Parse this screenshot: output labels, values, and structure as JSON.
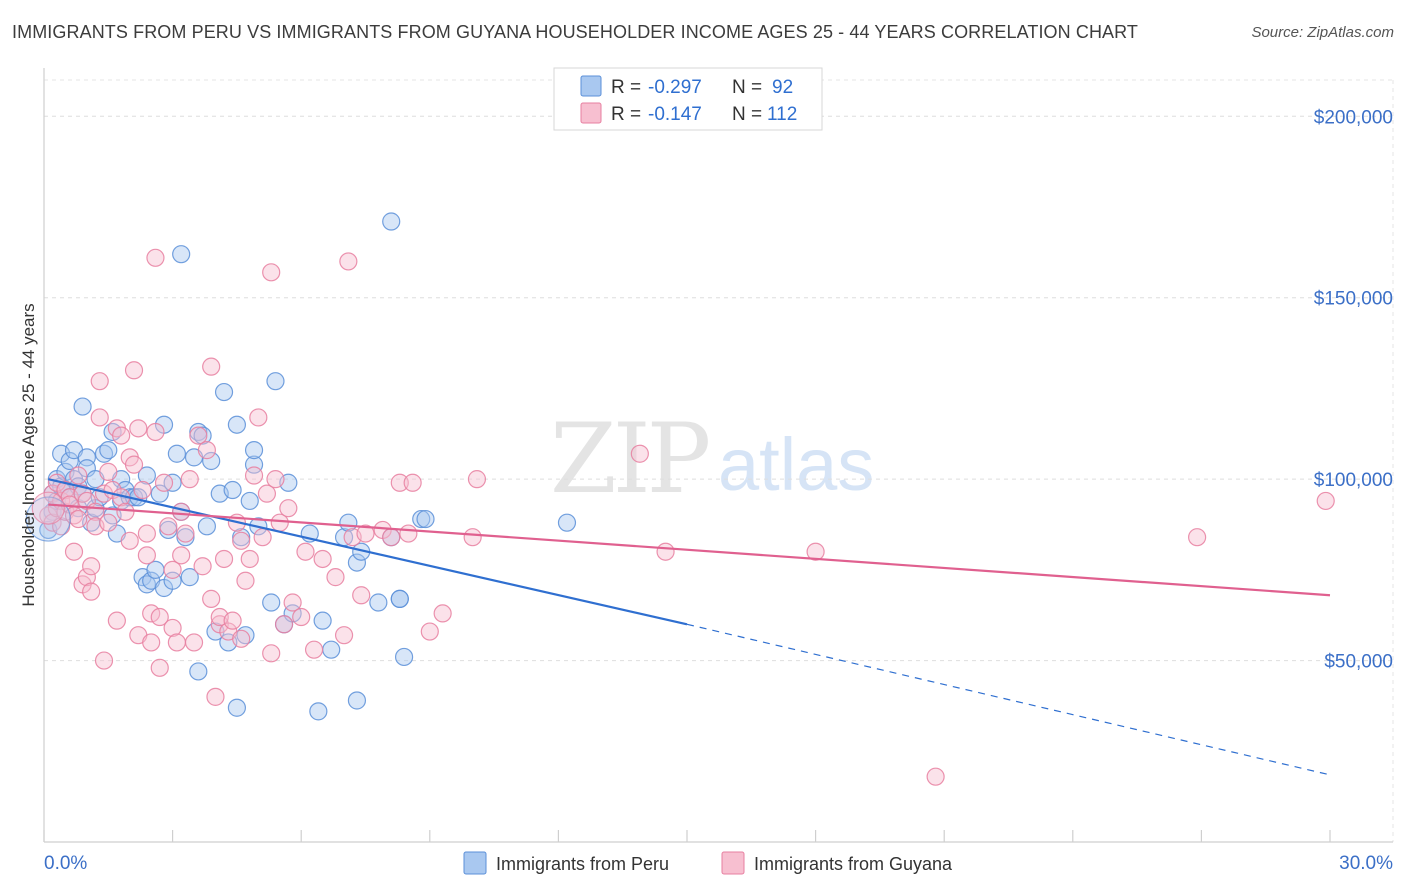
{
  "title": "IMMIGRANTS FROM PERU VS IMMIGRANTS FROM GUYANA HOUSEHOLDER INCOME AGES 25 - 44 YEARS CORRELATION CHART",
  "source": "Source: ZipAtlas.com",
  "watermark": {
    "zip": "ZIP",
    "atlas": "atlas"
  },
  "legend": {
    "rows": [
      {
        "r_label": "R =",
        "r_value": "-0.297",
        "n_label": "N =",
        "n_value": "92",
        "color": "#a9c8f0",
        "stroke": "#5b8fd8"
      },
      {
        "r_label": "R =",
        "r_value": "-0.147",
        "n_label": "N =",
        "n_value": "112",
        "color": "#f7bfd0",
        "stroke": "#e77fa0"
      }
    ]
  },
  "bottom_legend": [
    {
      "label": "Immigrants from Peru",
      "color": "#a9c8f0",
      "stroke": "#5b8fd8"
    },
    {
      "label": "Immigrants from Guyana",
      "color": "#f7bfd0",
      "stroke": "#e77fa0"
    }
  ],
  "chart_data": {
    "type": "scatter",
    "title": "IMMIGRANTS FROM PERU VS IMMIGRANTS FROM GUYANA HOUSEHOLDER INCOME AGES 25 - 44 YEARS CORRELATION CHART",
    "xlabel": "",
    "ylabel": "Householder Income Ages 25 - 44 years",
    "xlim": [
      0,
      30
    ],
    "ylim": [
      0,
      210000
    ],
    "x_tick_labels": [
      "0.0%",
      "30.0%"
    ],
    "y_ticks": [
      {
        "value": 50000,
        "label": "$50,000"
      },
      {
        "value": 100000,
        "label": "$100,000"
      },
      {
        "value": 150000,
        "label": "$150,000"
      },
      {
        "value": 200000,
        "label": "$200,000"
      }
    ],
    "series": [
      {
        "name": "Immigrants from Peru",
        "color": "#5b8fd8",
        "fill": "#a9c8f0",
        "r": -0.297,
        "n": 92,
        "trend": {
          "x0": 0.1,
          "y0": 100000,
          "x1": 15.0,
          "y1": 60000,
          "dash_to_x": 30.0,
          "dash_to_y": 18500
        },
        "points": [
          [
            0.1,
            86000
          ],
          [
            0.2,
            96000
          ],
          [
            0.2,
            91000
          ],
          [
            0.3,
            100000
          ],
          [
            0.3,
            94000
          ],
          [
            0.4,
            98000
          ],
          [
            0.4,
            107000
          ],
          [
            0.5,
            102000
          ],
          [
            0.5,
            97000
          ],
          [
            0.6,
            95000
          ],
          [
            0.6,
            105000
          ],
          [
            0.7,
            100000
          ],
          [
            0.7,
            108000
          ],
          [
            0.8,
            98000
          ],
          [
            0.8,
            92000
          ],
          [
            0.9,
            96000
          ],
          [
            0.9,
            120000
          ],
          [
            1.0,
            106000
          ],
          [
            1.0,
            103000
          ],
          [
            1.1,
            88000
          ],
          [
            1.2,
            100000
          ],
          [
            1.2,
            92000
          ],
          [
            1.3,
            95000
          ],
          [
            1.4,
            107000
          ],
          [
            1.5,
            108000
          ],
          [
            1.6,
            113000
          ],
          [
            1.6,
            90000
          ],
          [
            1.7,
            85000
          ],
          [
            1.8,
            94000
          ],
          [
            1.8,
            100000
          ],
          [
            1.9,
            97000
          ],
          [
            2.0,
            95000
          ],
          [
            2.1,
            95000
          ],
          [
            2.2,
            95000
          ],
          [
            2.3,
            73000
          ],
          [
            2.4,
            101000
          ],
          [
            2.4,
            71000
          ],
          [
            2.5,
            72000
          ],
          [
            2.6,
            75000
          ],
          [
            2.7,
            96000
          ],
          [
            2.8,
            70000
          ],
          [
            2.8,
            115000
          ],
          [
            2.9,
            86000
          ],
          [
            3.0,
            72000
          ],
          [
            3.0,
            99000
          ],
          [
            3.1,
            107000
          ],
          [
            3.2,
            91000
          ],
          [
            3.2,
            162000
          ],
          [
            3.3,
            84000
          ],
          [
            3.4,
            73000
          ],
          [
            3.5,
            106000
          ],
          [
            3.6,
            113000
          ],
          [
            3.6,
            47000
          ],
          [
            3.7,
            112000
          ],
          [
            3.8,
            87000
          ],
          [
            3.9,
            105000
          ],
          [
            4.0,
            58000
          ],
          [
            4.1,
            96000
          ],
          [
            4.2,
            124000
          ],
          [
            4.3,
            55000
          ],
          [
            4.4,
            97000
          ],
          [
            4.5,
            115000
          ],
          [
            4.5,
            37000
          ],
          [
            4.6,
            84000
          ],
          [
            4.7,
            57000
          ],
          [
            4.8,
            94000
          ],
          [
            4.9,
            104000
          ],
          [
            4.9,
            108000
          ],
          [
            5.0,
            87000
          ],
          [
            5.3,
            66000
          ],
          [
            5.4,
            127000
          ],
          [
            5.6,
            60000
          ],
          [
            5.7,
            99000
          ],
          [
            5.8,
            63000
          ],
          [
            6.2,
            85000
          ],
          [
            6.4,
            36000
          ],
          [
            6.5,
            61000
          ],
          [
            6.7,
            53000
          ],
          [
            7.0,
            84000
          ],
          [
            7.1,
            88000
          ],
          [
            7.3,
            77000
          ],
          [
            7.3,
            39000
          ],
          [
            7.4,
            80000
          ],
          [
            7.8,
            66000
          ],
          [
            8.1,
            171000
          ],
          [
            8.1,
            84000
          ],
          [
            8.3,
            67000
          ],
          [
            8.4,
            51000
          ],
          [
            8.8,
            89000
          ],
          [
            8.9,
            89000
          ],
          [
            12.2,
            88000
          ],
          [
            8.3,
            67000
          ]
        ]
      },
      {
        "name": "Immigrants from Guyana",
        "color": "#e77fa0",
        "fill": "#f7bfd0",
        "r": -0.147,
        "n": 112,
        "trend": {
          "x0": 0.1,
          "y0": 93000,
          "x1": 30.0,
          "y1": 68000
        },
        "points": [
          [
            0.1,
            90000
          ],
          [
            0.2,
            96000
          ],
          [
            0.2,
            88000
          ],
          [
            0.3,
            92000
          ],
          [
            0.3,
            99000
          ],
          [
            0.4,
            94000
          ],
          [
            0.4,
            87000
          ],
          [
            0.5,
            97000
          ],
          [
            0.5,
            91000
          ],
          [
            0.6,
            95000
          ],
          [
            0.6,
            93000
          ],
          [
            0.7,
            90000
          ],
          [
            0.7,
            80000
          ],
          [
            0.8,
            89000
          ],
          [
            0.8,
            101000
          ],
          [
            0.9,
            96000
          ],
          [
            0.9,
            71000
          ],
          [
            1.0,
            73000
          ],
          [
            1.0,
            94000
          ],
          [
            1.1,
            76000
          ],
          [
            1.1,
            69000
          ],
          [
            1.2,
            91000
          ],
          [
            1.2,
            87000
          ],
          [
            1.3,
            127000
          ],
          [
            1.3,
            117000
          ],
          [
            1.4,
            50000
          ],
          [
            1.4,
            96000
          ],
          [
            1.5,
            102000
          ],
          [
            1.5,
            88000
          ],
          [
            1.6,
            97000
          ],
          [
            1.7,
            114000
          ],
          [
            1.7,
            61000
          ],
          [
            1.8,
            112000
          ],
          [
            1.8,
            95000
          ],
          [
            1.9,
            91000
          ],
          [
            2.0,
            106000
          ],
          [
            2.0,
            83000
          ],
          [
            2.1,
            104000
          ],
          [
            2.1,
            130000
          ],
          [
            2.2,
            114000
          ],
          [
            2.2,
            57000
          ],
          [
            2.3,
            97000
          ],
          [
            2.4,
            85000
          ],
          [
            2.4,
            79000
          ],
          [
            2.5,
            63000
          ],
          [
            2.5,
            55000
          ],
          [
            2.6,
            161000
          ],
          [
            2.6,
            113000
          ],
          [
            2.7,
            62000
          ],
          [
            2.7,
            48000
          ],
          [
            2.8,
            99000
          ],
          [
            2.9,
            87000
          ],
          [
            3.0,
            75000
          ],
          [
            3.0,
            59000
          ],
          [
            3.1,
            55000
          ],
          [
            3.2,
            91000
          ],
          [
            3.2,
            79000
          ],
          [
            3.3,
            85000
          ],
          [
            3.4,
            100000
          ],
          [
            3.5,
            55000
          ],
          [
            3.6,
            112000
          ],
          [
            3.7,
            76000
          ],
          [
            3.8,
            108000
          ],
          [
            3.9,
            131000
          ],
          [
            3.9,
            67000
          ],
          [
            4.0,
            40000
          ],
          [
            4.1,
            60000
          ],
          [
            4.1,
            62000
          ],
          [
            4.2,
            78000
          ],
          [
            4.3,
            58000
          ],
          [
            4.4,
            61000
          ],
          [
            4.5,
            88000
          ],
          [
            4.6,
            56000
          ],
          [
            4.6,
            83000
          ],
          [
            4.7,
            72000
          ],
          [
            4.8,
            78000
          ],
          [
            4.9,
            101000
          ],
          [
            5.0,
            117000
          ],
          [
            5.1,
            84000
          ],
          [
            5.2,
            96000
          ],
          [
            5.3,
            52000
          ],
          [
            5.3,
            157000
          ],
          [
            5.4,
            100000
          ],
          [
            5.5,
            88000
          ],
          [
            5.6,
            60000
          ],
          [
            5.7,
            92000
          ],
          [
            5.8,
            66000
          ],
          [
            6.0,
            62000
          ],
          [
            6.1,
            80000
          ],
          [
            6.3,
            53000
          ],
          [
            6.5,
            78000
          ],
          [
            6.8,
            73000
          ],
          [
            7.0,
            57000
          ],
          [
            7.1,
            160000
          ],
          [
            7.2,
            84000
          ],
          [
            7.4,
            68000
          ],
          [
            7.5,
            85000
          ],
          [
            7.9,
            86000
          ],
          [
            8.1,
            84000
          ],
          [
            8.3,
            99000
          ],
          [
            8.5,
            85000
          ],
          [
            8.6,
            99000
          ],
          [
            9.0,
            58000
          ],
          [
            9.3,
            63000
          ],
          [
            10.0,
            84000
          ],
          [
            10.1,
            100000
          ],
          [
            13.9,
            107000
          ],
          [
            14.5,
            80000
          ],
          [
            18.0,
            80000
          ],
          [
            20.8,
            18000
          ],
          [
            26.9,
            84000
          ],
          [
            29.9,
            94000
          ]
        ]
      }
    ]
  }
}
